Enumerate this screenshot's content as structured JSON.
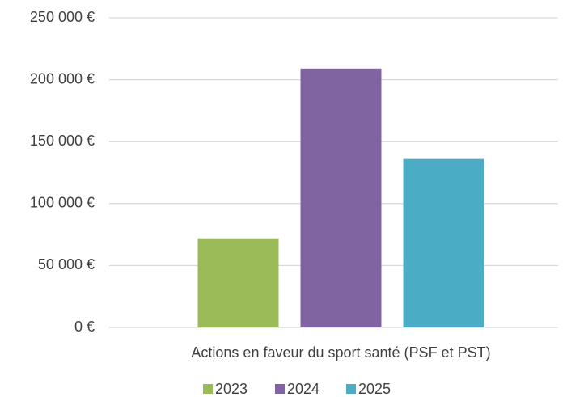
{
  "chart_data": {
    "type": "bar",
    "categories": [
      "Actions en faveur du sport santé (PSF et PST)"
    ],
    "series": [
      {
        "name": "2023",
        "color": "#9bbb59",
        "values": [
          72000
        ]
      },
      {
        "name": "2024",
        "color": "#8064a2",
        "values": [
          209000
        ]
      },
      {
        "name": "2025",
        "color": "#4bacc6",
        "values": [
          136000
        ]
      }
    ],
    "ylim": [
      0,
      250000
    ],
    "yticks": [
      {
        "value": 0,
        "label": "0 €"
      },
      {
        "value": 50000,
        "label": "50 000 €"
      },
      {
        "value": 100000,
        "label": "100 000 €"
      },
      {
        "value": 150000,
        "label": "150 000 €"
      },
      {
        "value": 200000,
        "label": "200 000 €"
      },
      {
        "value": 250000,
        "label": "250 000 €"
      }
    ],
    "grid": true,
    "legend": "bottom"
  }
}
